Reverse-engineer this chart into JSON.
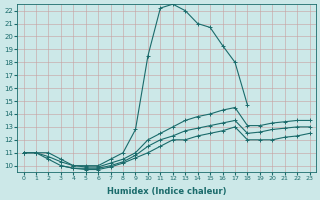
{
  "xlabel": "Humidex (Indice chaleur)",
  "bg_color": "#cce8e8",
  "grid_color": "#b0d4d4",
  "line_color": "#1a6b6b",
  "xlim": [
    -0.5,
    23.5
  ],
  "ylim": [
    9.5,
    22.5
  ],
  "xticks": [
    0,
    1,
    2,
    3,
    4,
    5,
    6,
    7,
    8,
    9,
    10,
    11,
    12,
    13,
    14,
    15,
    16,
    17,
    18,
    19,
    20,
    21,
    22,
    23
  ],
  "yticks": [
    10,
    11,
    12,
    13,
    14,
    15,
    16,
    17,
    18,
    19,
    20,
    21,
    22
  ],
  "curve0_x": [
    0,
    1,
    2,
    3,
    4,
    5,
    6,
    7,
    8,
    9,
    10,
    11,
    12,
    13,
    14,
    15,
    16,
    17,
    18
  ],
  "curve0_y": [
    11,
    11,
    11,
    10.5,
    10,
    10,
    10,
    10.5,
    11,
    12.8,
    18.5,
    22.2,
    22.5,
    22,
    21,
    20.7,
    19.3,
    18,
    14.7
  ],
  "curve1_x": [
    0,
    1,
    2,
    3,
    4,
    5,
    6,
    7,
    8,
    9,
    10,
    11,
    12,
    13,
    14,
    15,
    16,
    17,
    18,
    19,
    20,
    21,
    22,
    23
  ],
  "curve1_y": [
    11,
    11,
    10.7,
    10.3,
    10,
    9.9,
    9.9,
    10.2,
    10.5,
    11,
    12,
    12.5,
    13,
    13.5,
    13.8,
    14.0,
    14.3,
    14.5,
    13.1,
    13.1,
    13.3,
    13.4,
    13.5,
    13.5
  ],
  "curve2_x": [
    0,
    1,
    2,
    3,
    4,
    5,
    6,
    7,
    8,
    9,
    10,
    11,
    12,
    13,
    14,
    15,
    16,
    17,
    18,
    19,
    20,
    21,
    22,
    23
  ],
  "curve2_y": [
    11,
    11,
    10.5,
    10,
    9.8,
    9.8,
    9.8,
    10,
    10.3,
    10.8,
    11.5,
    12,
    12.3,
    12.7,
    12.9,
    13.1,
    13.3,
    13.5,
    12.5,
    12.6,
    12.8,
    12.9,
    13.0,
    13.0
  ],
  "curve3_x": [
    3,
    4,
    5,
    6,
    7,
    8,
    9,
    10,
    11,
    12,
    13,
    14,
    15,
    16,
    17,
    18,
    19,
    20,
    21,
    22,
    23
  ],
  "curve3_y": [
    10,
    9.8,
    9.7,
    9.7,
    9.9,
    10.2,
    10.6,
    11,
    11.5,
    12,
    12.0,
    12.3,
    12.5,
    12.7,
    13.0,
    12.0,
    12.0,
    12.0,
    12.2,
    12.3,
    12.5
  ]
}
